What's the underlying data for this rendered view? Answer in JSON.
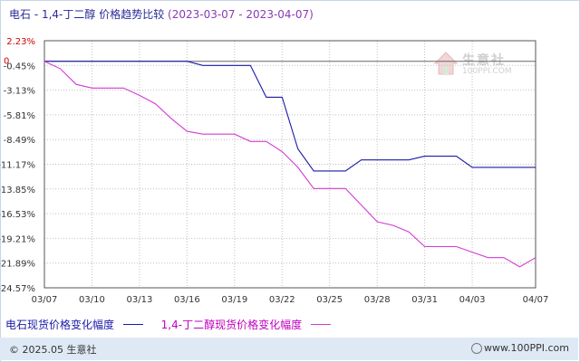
{
  "title": {
    "main": "电石 - 1,4-丁二醇 价格趋势比较",
    "range": "(2023-03-07 - 2023-04-07)"
  },
  "watermark": {
    "name": "生意社",
    "url": "100PPI.COM"
  },
  "footer": {
    "copyright": "© 2025.05 生意社",
    "site": "www.100PPI.com"
  },
  "colors": {
    "series1": "#1a1aa8",
    "series2": "#d43ad4",
    "axis": "#555555",
    "grid": "#c0c0c0",
    "zero_tick": "#d40000"
  },
  "chart_data": {
    "type": "line",
    "x": [
      "03/07",
      "03/08",
      "03/09",
      "03/10",
      "03/11",
      "03/12",
      "03/13",
      "03/14",
      "03/15",
      "03/16",
      "03/17",
      "03/18",
      "03/19",
      "03/20",
      "03/21",
      "03/22",
      "03/23",
      "03/24",
      "03/25",
      "03/26",
      "03/27",
      "03/28",
      "03/29",
      "03/30",
      "03/31",
      "04/01",
      "04/02",
      "04/03",
      "04/04",
      "04/05",
      "04/06",
      "04/07"
    ],
    "x_ticks": [
      "03/07",
      "03/10",
      "03/13",
      "03/16",
      "03/19",
      "03/22",
      "03/25",
      "03/28",
      "03/31",
      "04/03",
      "04/07"
    ],
    "y_ticks": [
      "2.23%",
      "-0.45%",
      "-3.13%",
      "-5.81%",
      "-8.49%",
      "-11.17%",
      "-13.85%",
      "-16.53%",
      "-19.21%",
      "-21.89%",
      "-24.57%"
    ],
    "y_tick_values": [
      2.23,
      -0.45,
      -3.13,
      -5.81,
      -8.49,
      -11.17,
      -13.85,
      -16.53,
      -19.21,
      -21.89,
      -24.57
    ],
    "zero_label": "0",
    "ylim": [
      -24.57,
      2.23
    ],
    "series": [
      {
        "name": "电石现货价格变化幅度",
        "values": [
          0,
          0,
          0,
          0,
          0,
          0,
          0,
          0,
          0,
          0,
          -0.45,
          -0.45,
          -0.45,
          -0.45,
          -3.9,
          -3.9,
          -9.5,
          -11.9,
          -11.9,
          -11.9,
          -10.7,
          -10.7,
          -10.7,
          -10.7,
          -10.3,
          -10.3,
          -10.3,
          -11.5,
          -11.5,
          -11.5,
          -11.5,
          -11.5
        ]
      },
      {
        "name": "1,4-丁二醇现货价格变化幅度",
        "values": [
          0,
          -0.8,
          -2.5,
          -2.9,
          -2.9,
          -2.9,
          -3.7,
          -4.6,
          -6.2,
          -7.6,
          -7.9,
          -7.9,
          -7.9,
          -8.7,
          -8.7,
          -9.8,
          -11.5,
          -13.8,
          -13.8,
          -13.8,
          -15.6,
          -17.4,
          -17.8,
          -18.5,
          -20.1,
          -20.1,
          -20.1,
          -20.7,
          -21.3,
          -21.3,
          -22.3,
          -21.3
        ]
      }
    ]
  }
}
